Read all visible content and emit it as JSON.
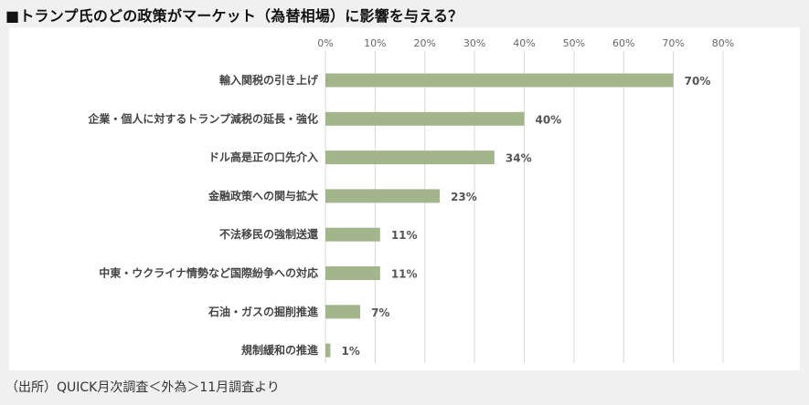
{
  "page": {
    "title": "■トランプ氏のどの政策がマーケット（為替相場）に影響を与える？",
    "source": "（出所）QUICK月次調査＜外為＞11月調査より"
  },
  "chart_data": {
    "type": "bar",
    "orientation": "horizontal",
    "title": "■トランプ氏のどの政策がマーケット（為替相場）に影響を与える？",
    "categories": [
      "輸入関税の引き上げ",
      "企業・個人に対するトランプ減税の延長・強化",
      "ドル高是正の口先介入",
      "金融政策への関与拡大",
      "不法移民の強制送還",
      "中東・ウクライナ情勢など国際紛争への対応",
      "石油・ガスの掘削推進",
      "規制緩和の推進"
    ],
    "values": [
      70,
      40,
      34,
      23,
      11,
      11,
      7,
      1
    ],
    "data_labels": [
      "70%",
      "40%",
      "34%",
      "23%",
      "11%",
      "11%",
      "7%",
      "1%"
    ],
    "xlim": [
      0,
      80
    ],
    "x_ticks": [
      "0%",
      "10%",
      "20%",
      "30%",
      "40%",
      "50%",
      "60%",
      "70%",
      "80%"
    ],
    "x_axis_position": "top",
    "grid": true,
    "legend": "none",
    "bar_color": "#a3b58b",
    "grid_color": "#d9d9d9"
  }
}
